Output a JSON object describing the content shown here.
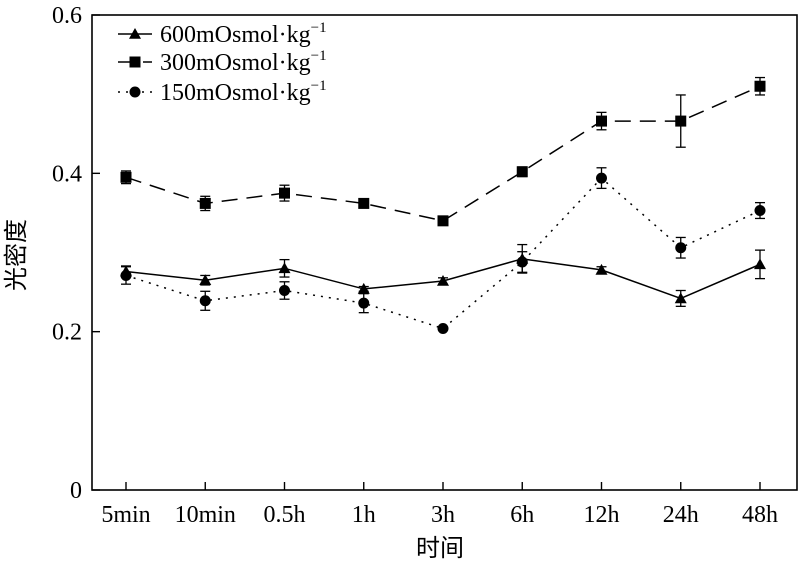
{
  "chart_data": {
    "type": "line",
    "categories": [
      "5min",
      "10min",
      "0.5h",
      "1h",
      "3h",
      "6h",
      "12h",
      "24h",
      "48h"
    ],
    "xlabel": "时间",
    "ylabel": "光密度",
    "ylim": [
      0,
      0.6
    ],
    "yticks": [
      0,
      0.2,
      0.4,
      0.6
    ],
    "ytick_labels": [
      "0",
      "0.2",
      "0.4",
      "0.6"
    ],
    "grid": false,
    "legend_position": "top-left",
    "series": [
      {
        "name": "600mOsmol·kg",
        "name_superscript": "−1",
        "marker": "triangle",
        "line_style": "solid",
        "values": [
          0.276,
          0.265,
          0.28,
          0.254,
          0.264,
          0.292,
          0.278,
          0.242,
          0.285
        ],
        "errors": [
          0.007,
          0.006,
          0.011,
          0.003,
          0.004,
          0.018,
          0.004,
          0.01,
          0.018
        ]
      },
      {
        "name": "300mOsmol·kg",
        "name_superscript": "−1",
        "marker": "square",
        "line_style": "dashed",
        "values": [
          0.395,
          0.362,
          0.375,
          0.362,
          0.34,
          0.402,
          0.466,
          0.466,
          0.51
        ],
        "errors": [
          0.008,
          0.009,
          0.01,
          0.004,
          0.003,
          0.006,
          0.011,
          0.033,
          0.011
        ]
      },
      {
        "name": "150mOsmol·kg",
        "name_superscript": "−1",
        "marker": "circle",
        "line_style": "dotted",
        "values": [
          0.271,
          0.239,
          0.252,
          0.236,
          0.204,
          0.288,
          0.394,
          0.306,
          0.353
        ],
        "errors": [
          0.011,
          0.012,
          0.011,
          0.012,
          0.002,
          0.013,
          0.013,
          0.013,
          0.01
        ]
      }
    ]
  }
}
